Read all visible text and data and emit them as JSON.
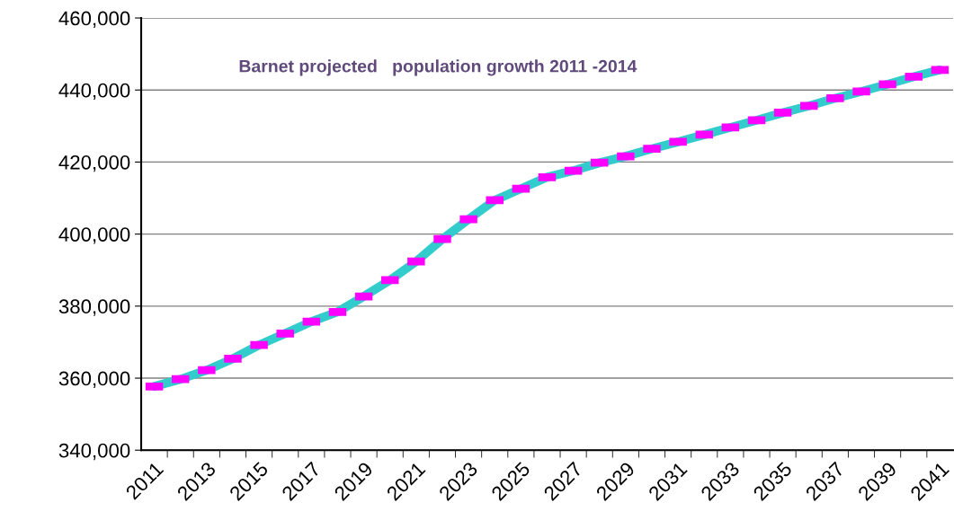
{
  "chart_data": {
    "type": "line",
    "title": "Barnet projected   population growth 2011 -2014",
    "categories": [
      "2011",
      null,
      "2013",
      null,
      "2015",
      null,
      "2017",
      null,
      "2019",
      null,
      "2021",
      null,
      "2023",
      null,
      "2025",
      null,
      "2027",
      null,
      "2029",
      null,
      "2031",
      null,
      "2033",
      null,
      "2035",
      null,
      "2037",
      null,
      "2039",
      null,
      "2041"
    ],
    "series": [
      {
        "color": "#33cccc",
        "values": [
          357700,
          359700,
          362200,
          365400,
          369200,
          372400,
          375700,
          378400,
          382700,
          387200,
          392400,
          398600,
          404100,
          409400,
          412600,
          415800,
          417600,
          419800,
          421600,
          423700,
          425600,
          427600,
          429600,
          431600,
          433700,
          435600,
          437700,
          439600,
          441600,
          443700,
          445600
        ]
      }
    ],
    "ylim": [
      340000,
      460000
    ],
    "yticks": [
      {
        "value": 340000,
        "label": "340,000"
      },
      {
        "value": 360000,
        "label": "360,000"
      },
      {
        "value": 380000,
        "label": "380,000"
      },
      {
        "value": 400000,
        "label": "400,000"
      },
      {
        "value": 420000,
        "label": "420,000"
      },
      {
        "value": 440000,
        "label": "440,000"
      },
      {
        "value": 460000,
        "label": "460,000"
      }
    ],
    "grid": "y",
    "marker": "square",
    "legend": false
  }
}
